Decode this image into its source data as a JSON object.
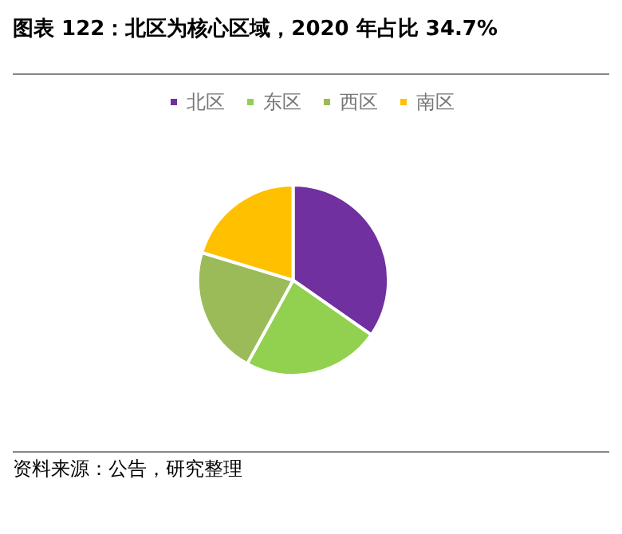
{
  "chart_data": {
    "type": "pie",
    "title": "图表 122：北区为核心区域，2020 年占比 34.7%",
    "categories": [
      "北区",
      "东区",
      "西区",
      "南区"
    ],
    "values": [
      34.7,
      23.3,
      21.7,
      20.3
    ],
    "colors": [
      "#7030a0",
      "#92d050",
      "#9bbb59",
      "#ffc000"
    ],
    "legend": "top",
    "annotations": [
      "资料来源：公告，研究整理"
    ]
  }
}
